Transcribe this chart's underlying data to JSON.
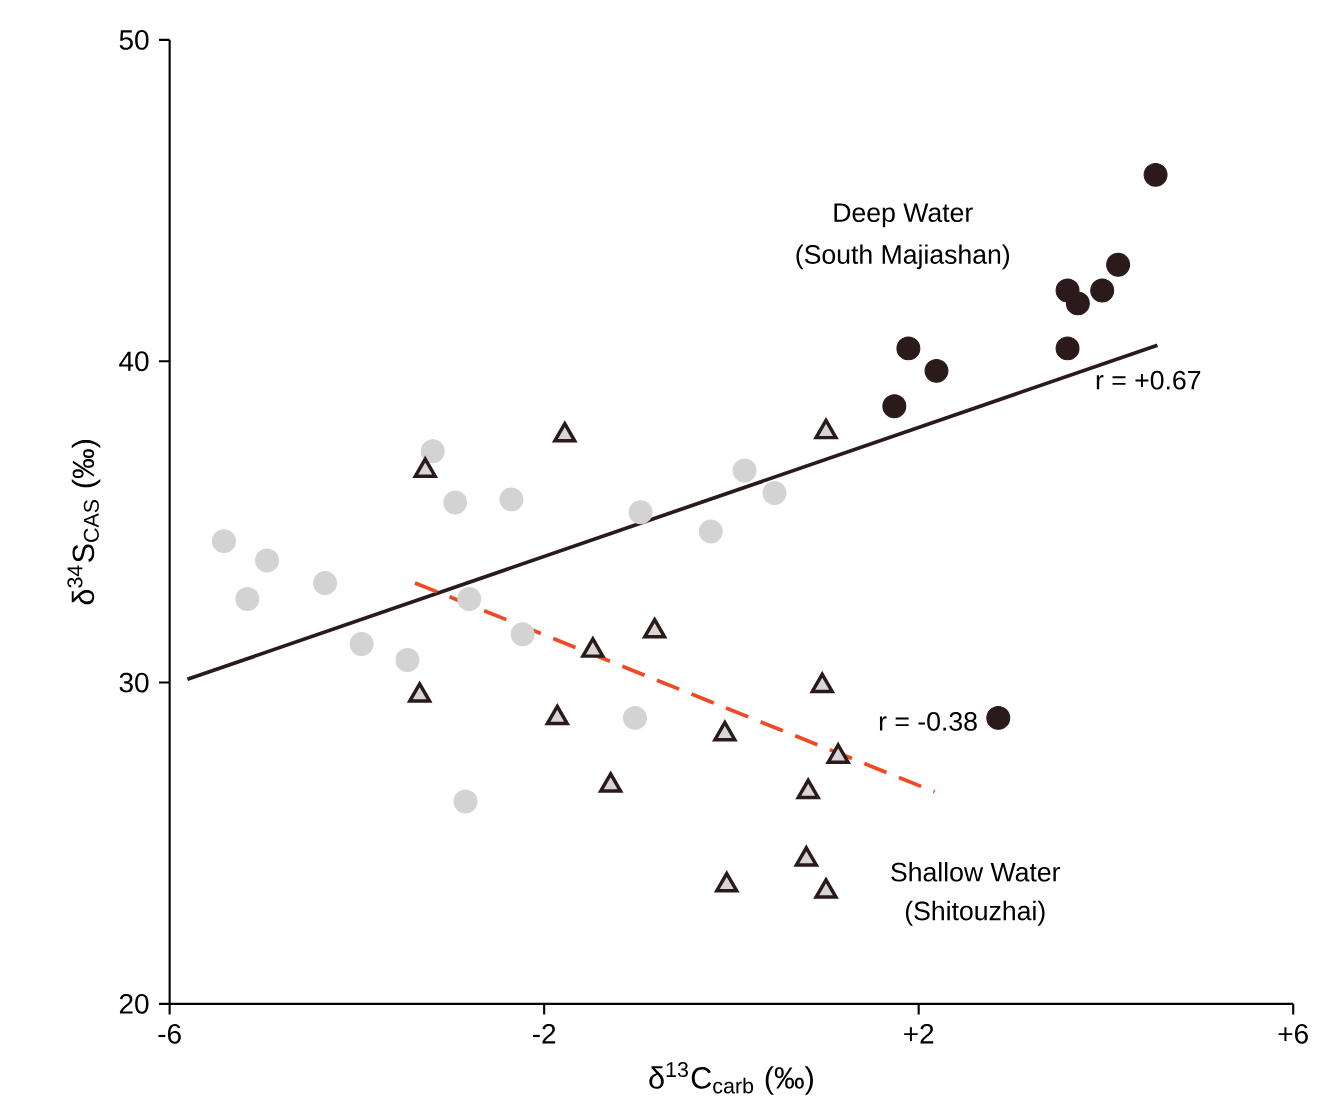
{
  "chart_data": {
    "type": "scatter",
    "xlabel": "δ$^{13}$C$_{carb}$ (‰)",
    "ylabel": "δ$^{34}$S$_{CAS}$ (‰)",
    "xlim": [
      -6,
      6
    ],
    "ylim": [
      20,
      50
    ],
    "xticks": [
      -6,
      -2,
      {
        "value": 2,
        "label": "+2"
      },
      {
        "value": 6,
        "label": "+6"
      }
    ],
    "yticks": [
      20,
      30,
      40,
      50
    ],
    "grid": false,
    "series": [
      {
        "marker": "circle",
        "color": "#d3d3d3",
        "x": [
          -5.42,
          -4.96,
          -5.17,
          -4.34,
          -3.95,
          -3.46,
          -3.19,
          -2.95,
          -2.35,
          -2.8,
          -2.23,
          -0.97,
          -0.22,
          0.14,
          0.46,
          -1.03,
          -2.84
        ],
        "values": [
          34.4,
          33.8,
          32.6,
          33.1,
          31.2,
          30.7,
          37.2,
          35.6,
          35.7,
          32.6,
          31.5,
          35.3,
          34.7,
          36.6,
          35.9,
          28.9,
          26.3
        ]
      },
      {
        "marker": "triangle",
        "color": "#2b1a1a",
        "x": [
          -3.27,
          -1.78,
          1.01,
          -0.82,
          -1.48,
          -3.33,
          -1.86,
          -0.07,
          0.97,
          1.14,
          -1.29,
          0.82,
          0.8,
          -0.05,
          1.01
        ],
        "values": [
          36.6,
          37.7,
          37.8,
          31.6,
          31.0,
          29.6,
          28.9,
          28.4,
          29.9,
          27.7,
          26.8,
          26.6,
          24.5,
          23.7,
          23.5
        ]
      },
      {
        "marker": "circle",
        "color": "#2b1a1a",
        "x": [
          4.53,
          1.89,
          2.19,
          1.74,
          3.59,
          3.7,
          3.96,
          4.13,
          3.59,
          2.85
        ],
        "values": [
          45.8,
          40.4,
          39.7,
          38.6,
          42.2,
          41.8,
          42.2,
          43.0,
          40.4,
          28.9
        ]
      },
      {
        "type": "line",
        "line_style": "solid",
        "color": "#2b1a1a",
        "x": [
          -5.81,
          4.55
        ],
        "values": [
          30.1,
          40.5
        ]
      },
      {
        "type": "line",
        "line_style": "dashed",
        "color": "#f04a24",
        "x": [
          -3.38,
          2.17
        ],
        "values": [
          33.1,
          26.6
        ]
      }
    ],
    "annotations": [
      "Deep Water",
      "(South Majiashan)",
      "r = +0.67",
      "r = -0.38",
      "Shallow Water",
      "(Shitouzhai)"
    ]
  }
}
